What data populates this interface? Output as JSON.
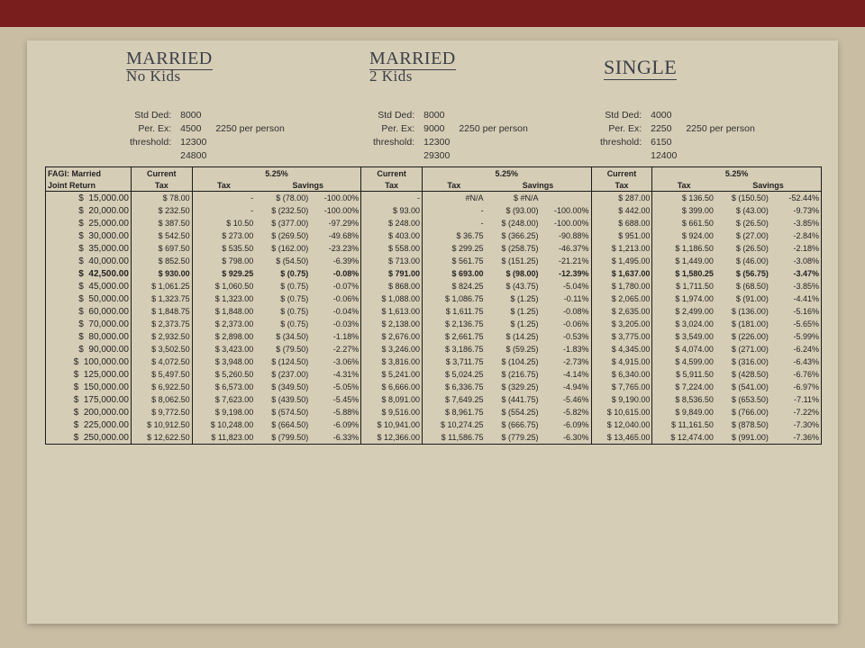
{
  "handwritten": {
    "col1_line1": "MARRIED",
    "col1_line2": "No Kids",
    "col2_line1": "MARRIED",
    "col2_line2": "2 Kids",
    "col3": "SINGLE"
  },
  "meta_labels": {
    "std": "Std Ded:",
    "per": "Per. Ex:",
    "thr": "threshold:"
  },
  "per_person_note": "2250 per person",
  "sections": [
    {
      "std": "8000",
      "per": "4500",
      "thr1": "12300",
      "thr2": "24800"
    },
    {
      "std": "8000",
      "per": "9000",
      "thr1": "12300",
      "thr2": "29300"
    },
    {
      "std": "4000",
      "per": "2250",
      "thr1": "6150",
      "thr2": "12400"
    }
  ],
  "headers": {
    "fagi1": "FAGI: Married",
    "fagi2": "Joint Return",
    "current": "Current",
    "tax": "Tax",
    "rate": "5.25%",
    "savings": "Savings"
  },
  "bold_fagi": "42,500.00",
  "rows": [
    {
      "fagi": "15,000.00",
      "s": [
        {
          "cur": "78.00",
          "tax": "-",
          "sav": "(78.00)",
          "pct": "-100.00%"
        },
        {
          "cur": "-",
          "tax": "#N/A",
          "sav": "#N/A",
          "pct": ""
        },
        {
          "cur": "287.00",
          "tax": "136.50",
          "sav": "(150.50)",
          "pct": "-52.44%"
        }
      ]
    },
    {
      "fagi": "20,000.00",
      "s": [
        {
          "cur": "232.50",
          "tax": "-",
          "sav": "(232.50)",
          "pct": "-100.00%"
        },
        {
          "cur": "93.00",
          "tax": "-",
          "sav": "(93.00)",
          "pct": "-100.00%"
        },
        {
          "cur": "442.00",
          "tax": "399.00",
          "sav": "(43.00)",
          "pct": "-9.73%"
        }
      ]
    },
    {
      "fagi": "25,000.00",
      "s": [
        {
          "cur": "387.50",
          "tax": "10.50",
          "sav": "(377.00)",
          "pct": "-97.29%"
        },
        {
          "cur": "248.00",
          "tax": "-",
          "sav": "(248.00)",
          "pct": "-100.00%"
        },
        {
          "cur": "688.00",
          "tax": "661.50",
          "sav": "(26.50)",
          "pct": "-3.85%"
        }
      ]
    },
    {
      "fagi": "30,000.00",
      "s": [
        {
          "cur": "542.50",
          "tax": "273.00",
          "sav": "(269.50)",
          "pct": "-49.68%"
        },
        {
          "cur": "403.00",
          "tax": "36.75",
          "sav": "(366.25)",
          "pct": "-90.88%"
        },
        {
          "cur": "951.00",
          "tax": "924.00",
          "sav": "(27.00)",
          "pct": "-2.84%"
        }
      ]
    },
    {
      "fagi": "35,000.00",
      "s": [
        {
          "cur": "697.50",
          "tax": "535.50",
          "sav": "(162.00)",
          "pct": "-23.23%"
        },
        {
          "cur": "558.00",
          "tax": "299.25",
          "sav": "(258.75)",
          "pct": "-46.37%"
        },
        {
          "cur": "1,213.00",
          "tax": "1,186.50",
          "sav": "(26.50)",
          "pct": "-2.18%"
        }
      ]
    },
    {
      "fagi": "40,000.00",
      "s": [
        {
          "cur": "852.50",
          "tax": "798.00",
          "sav": "(54.50)",
          "pct": "-6.39%"
        },
        {
          "cur": "713.00",
          "tax": "561.75",
          "sav": "(151.25)",
          "pct": "-21.21%"
        },
        {
          "cur": "1,495.00",
          "tax": "1,449.00",
          "sav": "(46.00)",
          "pct": "-3.08%"
        }
      ]
    },
    {
      "fagi": "42,500.00",
      "bold": true,
      "s": [
        {
          "cur": "930.00",
          "tax": "929.25",
          "sav": "(0.75)",
          "pct": "-0.08%"
        },
        {
          "cur": "791.00",
          "tax": "693.00",
          "sav": "(98.00)",
          "pct": "-12.39%"
        },
        {
          "cur": "1,637.00",
          "tax": "1,580.25",
          "sav": "(56.75)",
          "pct": "-3.47%"
        }
      ]
    },
    {
      "fagi": "45,000.00",
      "s": [
        {
          "cur": "1,061.25",
          "tax": "1,060.50",
          "sav": "(0.75)",
          "pct": "-0.07%"
        },
        {
          "cur": "868.00",
          "tax": "824.25",
          "sav": "(43.75)",
          "pct": "-5.04%"
        },
        {
          "cur": "1,780.00",
          "tax": "1,711.50",
          "sav": "(68.50)",
          "pct": "-3.85%"
        }
      ]
    },
    {
      "fagi": "50,000.00",
      "s": [
        {
          "cur": "1,323.75",
          "tax": "1,323.00",
          "sav": "(0.75)",
          "pct": "-0.06%"
        },
        {
          "cur": "1,088.00",
          "tax": "1,086.75",
          "sav": "(1.25)",
          "pct": "-0.11%"
        },
        {
          "cur": "2,065.00",
          "tax": "1,974.00",
          "sav": "(91.00)",
          "pct": "-4.41%"
        }
      ]
    },
    {
      "fagi": "60,000.00",
      "s": [
        {
          "cur": "1,848.75",
          "tax": "1,848.00",
          "sav": "(0.75)",
          "pct": "-0.04%"
        },
        {
          "cur": "1,613.00",
          "tax": "1,611.75",
          "sav": "(1.25)",
          "pct": "-0.08%"
        },
        {
          "cur": "2,635.00",
          "tax": "2,499.00",
          "sav": "(136.00)",
          "pct": "-5.16%"
        }
      ]
    },
    {
      "fagi": "70,000.00",
      "s": [
        {
          "cur": "2,373.75",
          "tax": "2,373.00",
          "sav": "(0.75)",
          "pct": "-0.03%"
        },
        {
          "cur": "2,138.00",
          "tax": "2,136.75",
          "sav": "(1.25)",
          "pct": "-0.06%"
        },
        {
          "cur": "3,205.00",
          "tax": "3,024.00",
          "sav": "(181.00)",
          "pct": "-5.65%"
        }
      ]
    },
    {
      "fagi": "80,000.00",
      "s": [
        {
          "cur": "2,932.50",
          "tax": "2,898.00",
          "sav": "(34.50)",
          "pct": "-1.18%"
        },
        {
          "cur": "2,676.00",
          "tax": "2,661.75",
          "sav": "(14.25)",
          "pct": "-0.53%"
        },
        {
          "cur": "3,775.00",
          "tax": "3,549.00",
          "sav": "(226.00)",
          "pct": "-5.99%"
        }
      ]
    },
    {
      "fagi": "90,000.00",
      "s": [
        {
          "cur": "3,502.50",
          "tax": "3,423.00",
          "sav": "(79.50)",
          "pct": "-2.27%"
        },
        {
          "cur": "3,246.00",
          "tax": "3,186.75",
          "sav": "(59.25)",
          "pct": "-1.83%"
        },
        {
          "cur": "4,345.00",
          "tax": "4,074.00",
          "sav": "(271.00)",
          "pct": "-6.24%"
        }
      ]
    },
    {
      "fagi": "100,000.00",
      "s": [
        {
          "cur": "4,072.50",
          "tax": "3,948.00",
          "sav": "(124.50)",
          "pct": "-3.06%"
        },
        {
          "cur": "3,816.00",
          "tax": "3,711.75",
          "sav": "(104.25)",
          "pct": "-2.73%"
        },
        {
          "cur": "4,915.00",
          "tax": "4,599.00",
          "sav": "(316.00)",
          "pct": "-6.43%"
        }
      ]
    },
    {
      "fagi": "125,000.00",
      "s": [
        {
          "cur": "5,497.50",
          "tax": "5,260.50",
          "sav": "(237.00)",
          "pct": "-4.31%"
        },
        {
          "cur": "5,241.00",
          "tax": "5,024.25",
          "sav": "(216.75)",
          "pct": "-4.14%"
        },
        {
          "cur": "6,340.00",
          "tax": "5,911.50",
          "sav": "(428.50)",
          "pct": "-6.76%"
        }
      ]
    },
    {
      "fagi": "150,000.00",
      "s": [
        {
          "cur": "6,922.50",
          "tax": "6,573.00",
          "sav": "(349.50)",
          "pct": "-5.05%"
        },
        {
          "cur": "6,666.00",
          "tax": "6,336.75",
          "sav": "(329.25)",
          "pct": "-4.94%"
        },
        {
          "cur": "7,765.00",
          "tax": "7,224.00",
          "sav": "(541.00)",
          "pct": "-6.97%"
        }
      ]
    },
    {
      "fagi": "175,000.00",
      "s": [
        {
          "cur": "8,062.50",
          "tax": "7,623.00",
          "sav": "(439.50)",
          "pct": "-5.45%"
        },
        {
          "cur": "8,091.00",
          "tax": "7,649.25",
          "sav": "(441.75)",
          "pct": "-5.46%"
        },
        {
          "cur": "9,190.00",
          "tax": "8,536.50",
          "sav": "(653.50)",
          "pct": "-7.11%"
        }
      ]
    },
    {
      "fagi": "200,000.00",
      "s": [
        {
          "cur": "9,772.50",
          "tax": "9,198.00",
          "sav": "(574.50)",
          "pct": "-5.88%"
        },
        {
          "cur": "9,516.00",
          "tax": "8,961.75",
          "sav": "(554.25)",
          "pct": "-5.82%"
        },
        {
          "cur": "10,615.00",
          "tax": "9,849.00",
          "sav": "(766.00)",
          "pct": "-7.22%"
        }
      ]
    },
    {
      "fagi": "225,000.00",
      "s": [
        {
          "cur": "10,912.50",
          "tax": "10,248.00",
          "sav": "(664.50)",
          "pct": "-6.09%"
        },
        {
          "cur": "10,941.00",
          "tax": "10,274.25",
          "sav": "(666.75)",
          "pct": "-6.09%"
        },
        {
          "cur": "12,040.00",
          "tax": "11,161.50",
          "sav": "(878.50)",
          "pct": "-7.30%"
        }
      ]
    },
    {
      "fagi": "250,000.00",
      "s": [
        {
          "cur": "12,622.50",
          "tax": "11,823.00",
          "sav": "(799.50)",
          "pct": "-6.33%"
        },
        {
          "cur": "12,366.00",
          "tax": "11,586.75",
          "sav": "(779.25)",
          "pct": "-6.30%"
        },
        {
          "cur": "13,465.00",
          "tax": "12,474.00",
          "sav": "(991.00)",
          "pct": "-7.36%"
        }
      ]
    }
  ],
  "colors": {
    "paper": "#d6cdb6",
    "ink": "#2a2a2a",
    "border": "#1a1a1a"
  }
}
